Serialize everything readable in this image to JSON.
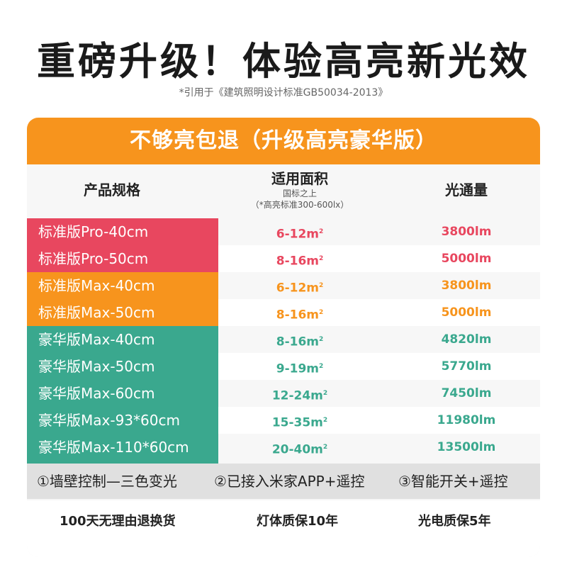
{
  "headline": "重磅升级！体验高亮新光效",
  "subnote": "*引用于《建筑照明设计标准GB50034-2013》",
  "banner": "不够亮包退（升级高亮豪华版）",
  "columns": {
    "spec": "产品规格",
    "area": "适用面积",
    "area_sub1": "国标之上",
    "area_sub2": "（*高亮标准300-600lx）",
    "lumen": "光通量"
  },
  "rows": [
    {
      "name": "标准版Pro-40cm",
      "area": "6-12m",
      "lumen": "3800lm",
      "group": "red"
    },
    {
      "name": "标准版Pro-50cm",
      "area": "8-16m",
      "lumen": "5000lm",
      "group": "red"
    },
    {
      "name": "标准版Max-40cm",
      "area": "6-12m",
      "lumen": "3800lm",
      "group": "orange"
    },
    {
      "name": "标准版Max-50cm",
      "area": "8-16m",
      "lumen": "5000lm",
      "group": "orange"
    },
    {
      "name": "豪华版Max-40cm",
      "area": "8-16m",
      "lumen": "4820lm",
      "group": "green"
    },
    {
      "name": "豪华版Max-50cm",
      "area": "9-19m",
      "lumen": "5770lm",
      "group": "green"
    },
    {
      "name": "豪华版Max-60cm",
      "area": "12-24m",
      "lumen": "7450lm",
      "group": "green"
    },
    {
      "name": "豪华版Max-93*60cm",
      "area": "15-35m",
      "lumen": "11980lm",
      "group": "green"
    },
    {
      "name": "豪华版Max-110*60cm",
      "area": "20-40m",
      "lumen": "13500lm",
      "group": "green"
    }
  ],
  "area_sup": "2",
  "features": [
    "①墙壁控制—三色变光",
    "②已接入米家APP+遥控",
    "③智能开关+遥控"
  ],
  "guarantees": [
    "100天无理由退换货",
    "灯体质保10年",
    "光电质保5年"
  ],
  "colors": {
    "red": "#e8475f",
    "orange": "#f7941d",
    "green": "#3aa88e"
  }
}
